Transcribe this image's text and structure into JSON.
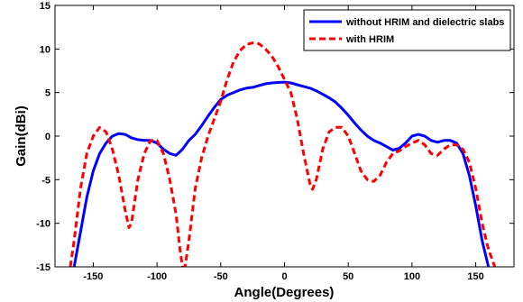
{
  "chart_data": {
    "type": "line",
    "title": "",
    "xlabel": "Angle(Degrees)",
    "ylabel": "Gain(dBi)",
    "xlim": [
      -180,
      180
    ],
    "ylim": [
      -15,
      15
    ],
    "xticks": [
      -150,
      -100,
      -50,
      0,
      50,
      100,
      150
    ],
    "yticks": [
      -15,
      -10,
      -5,
      0,
      5,
      10,
      15
    ],
    "grid": false,
    "legend_position": "top-right",
    "series": [
      {
        "name": "without HRIM and dielectric slabs",
        "color": "#0000ff",
        "dash": "solid",
        "x": [
          -165,
          -160,
          -155,
          -150,
          -145,
          -140,
          -135,
          -130,
          -125,
          -120,
          -115,
          -110,
          -105,
          -100,
          -95,
          -90,
          -85,
          -80,
          -75,
          -70,
          -65,
          -60,
          -55,
          -50,
          -45,
          -40,
          -35,
          -30,
          -25,
          -20,
          -15,
          -10,
          -5,
          0,
          5,
          10,
          15,
          20,
          25,
          30,
          35,
          40,
          45,
          50,
          55,
          60,
          65,
          70,
          75,
          80,
          85,
          90,
          95,
          100,
          105,
          110,
          115,
          120,
          125,
          130,
          135,
          140,
          145,
          150,
          155,
          160
        ],
        "y": [
          -15,
          -11,
          -7,
          -4,
          -2,
          -0.8,
          0,
          0.3,
          0.2,
          -0.2,
          -0.4,
          -0.5,
          -0.5,
          -0.8,
          -1.5,
          -2,
          -2.2,
          -1.5,
          -0.5,
          0.2,
          1.2,
          2.3,
          3.3,
          4.2,
          4.7,
          5.0,
          5.3,
          5.5,
          5.6,
          5.8,
          6.0,
          6.1,
          6.15,
          6.2,
          6.1,
          5.9,
          5.7,
          5.5,
          5.2,
          4.8,
          4.4,
          3.9,
          3.2,
          2.4,
          1.5,
          0.7,
          0,
          -0.5,
          -0.8,
          -1.2,
          -1.6,
          -1.4,
          -0.8,
          0,
          0.2,
          0,
          -0.5,
          -0.7,
          -0.5,
          -0.5,
          -0.8,
          -2.0,
          -4.5,
          -8,
          -12,
          -15
        ]
      },
      {
        "name": "with HRIM",
        "color": "#ff0000",
        "dash": "dashed",
        "x": [
          -168,
          -165,
          -160,
          -155,
          -150,
          -145,
          -140,
          -135,
          -130,
          -125,
          -122,
          -120,
          -115,
          -110,
          -105,
          -100,
          -95,
          -90,
          -85,
          -82,
          -80,
          -78,
          -75,
          -70,
          -65,
          -60,
          -55,
          -50,
          -45,
          -40,
          -35,
          -30,
          -25,
          -20,
          -15,
          -10,
          -5,
          0,
          5,
          10,
          15,
          20,
          22,
          25,
          30,
          35,
          40,
          45,
          50,
          55,
          60,
          65,
          70,
          75,
          80,
          85,
          90,
          95,
          100,
          105,
          110,
          115,
          120,
          125,
          130,
          135,
          140,
          145,
          150,
          155,
          160,
          165
        ],
        "y": [
          -15,
          -12,
          -6,
          -2,
          0,
          1.0,
          0.5,
          -1.5,
          -4.5,
          -8.5,
          -10.5,
          -10,
          -5,
          -2,
          -0.5,
          -0.5,
          -2,
          -5,
          -9,
          -13,
          -15,
          -15,
          -12,
          -6,
          -2.5,
          0,
          2,
          4,
          6.5,
          8.5,
          9.8,
          10.5,
          10.7,
          10.6,
          10,
          9.2,
          8,
          6.5,
          5,
          2,
          -2,
          -5.5,
          -6.1,
          -5,
          -1.5,
          0.5,
          1.0,
          1.0,
          0,
          -2,
          -4,
          -5,
          -5.2,
          -4.5,
          -3,
          -2,
          -1.7,
          -1.2,
          -0.8,
          -0.5,
          -1,
          -2,
          -2.2,
          -1.5,
          -1,
          -1,
          -1.5,
          -3,
          -6,
          -10,
          -13,
          -15
        ]
      }
    ]
  }
}
